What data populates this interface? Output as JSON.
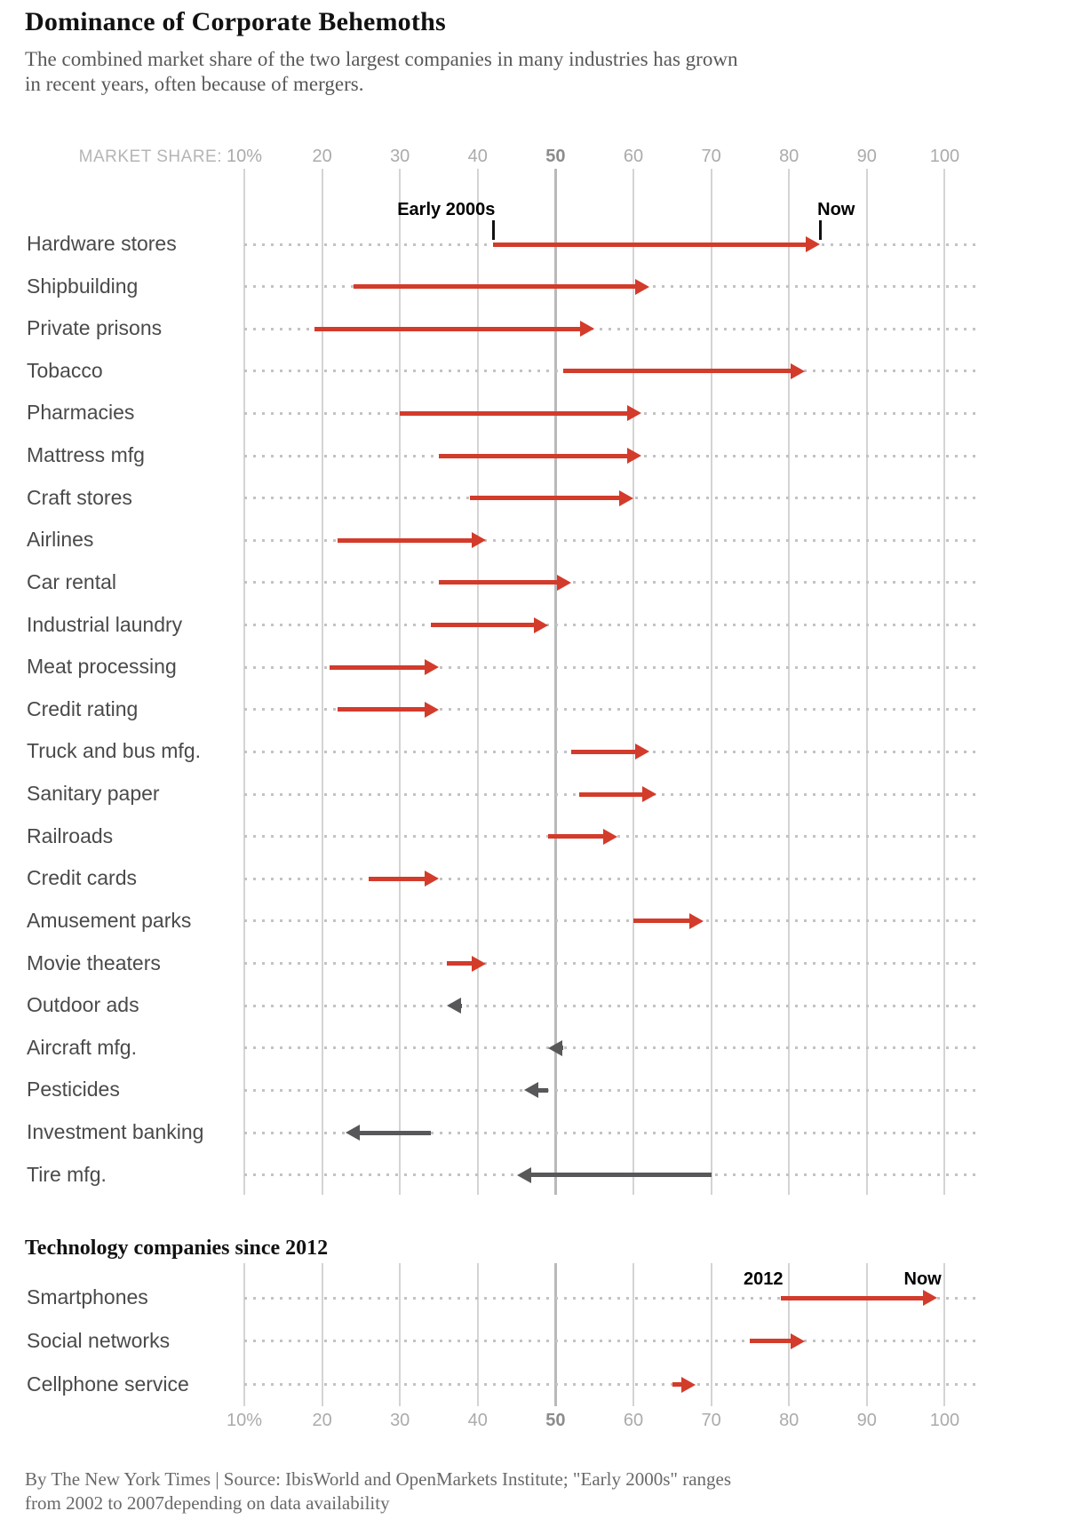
{
  "footer": {
    "lines": [
      "By The New York Times | Source: IbisWorld and OpenMarkets Institute; \"Early 2000s\" ranges",
      "from 2002 to 2007depending on data availability"
    ]
  },
  "chart_data": [
    {
      "type": "arrow",
      "title": "Dominance of Corporate Behemoths",
      "subtitle": "The combined market share of the two largest companies in many industries has grown in recent years, often because of mergers.",
      "subtitle_lines": [
        "The combined market share of the two largest companies in many industries has grown",
        "in recent years, often because of mergers."
      ],
      "axis_label": "MARKET SHARE:",
      "xlabel": "Market share (%)",
      "xlim": [
        10,
        100
      ],
      "grid": true,
      "xticks": [
        {
          "value": 10,
          "label": "10%",
          "bold": false
        },
        {
          "value": 20,
          "label": "20",
          "bold": false
        },
        {
          "value": 30,
          "label": "30",
          "bold": false
        },
        {
          "value": 40,
          "label": "40",
          "bold": false
        },
        {
          "value": 50,
          "label": "50",
          "bold": true
        },
        {
          "value": 60,
          "label": "60",
          "bold": false
        },
        {
          "value": 70,
          "label": "70",
          "bold": false
        },
        {
          "value": 80,
          "label": "80",
          "bold": false
        },
        {
          "value": 90,
          "label": "90",
          "bold": false
        },
        {
          "value": 100,
          "label": "100",
          "bold": false
        }
      ],
      "start_label": "Early 2000s",
      "end_label": "Now",
      "categories": [
        "Hardware stores",
        "Shipbuilding",
        "Private prisons",
        "Tobacco",
        "Pharmacies",
        "Mattress mfg",
        "Craft stores",
        "Airlines",
        "Car rental",
        "Industrial laundry",
        "Meat processing",
        "Credit rating",
        "Truck and bus mfg.",
        "Sanitary paper",
        "Railroads",
        "Credit cards",
        "Amusement parks",
        "Movie theaters",
        "Outdoor ads",
        "Aircraft mfg.",
        "Pesticides",
        "Investment banking",
        "Tire mfg."
      ],
      "series": [
        {
          "name": "Early 2000s",
          "values": [
            42,
            24,
            19,
            51,
            30,
            35,
            39,
            22,
            35,
            34,
            21,
            22,
            52,
            53,
            49,
            26,
            60,
            36,
            38,
            51,
            49,
            34,
            70
          ]
        },
        {
          "name": "Now",
          "values": [
            84,
            62,
            55,
            82,
            61,
            61,
            60,
            41,
            52,
            49,
            35,
            35,
            62,
            63,
            58,
            35,
            69,
            41,
            36,
            49,
            46,
            23,
            45
          ]
        }
      ],
      "colors": {
        "increase": "#d33b2b",
        "decrease": "#58585a"
      }
    },
    {
      "type": "arrow",
      "title": "Technology companies since 2012",
      "xlim": [
        10,
        100
      ],
      "grid": true,
      "xticks": [
        {
          "value": 10,
          "label": "10%",
          "bold": false
        },
        {
          "value": 20,
          "label": "20",
          "bold": false
        },
        {
          "value": 30,
          "label": "30",
          "bold": false
        },
        {
          "value": 40,
          "label": "40",
          "bold": false
        },
        {
          "value": 50,
          "label": "50",
          "bold": true
        },
        {
          "value": 60,
          "label": "60",
          "bold": false
        },
        {
          "value": 70,
          "label": "70",
          "bold": false
        },
        {
          "value": 80,
          "label": "80",
          "bold": false
        },
        {
          "value": 90,
          "label": "90",
          "bold": false
        },
        {
          "value": 100,
          "label": "100",
          "bold": false
        }
      ],
      "start_label": "2012",
      "end_label": "Now",
      "categories": [
        "Smartphones",
        "Social networks",
        "Cellphone service"
      ],
      "series": [
        {
          "name": "2012",
          "values": [
            79,
            75,
            65
          ]
        },
        {
          "name": "Now",
          "values": [
            99,
            82,
            68
          ]
        }
      ],
      "colors": {
        "increase": "#d33b2b",
        "decrease": "#58585a"
      }
    }
  ]
}
